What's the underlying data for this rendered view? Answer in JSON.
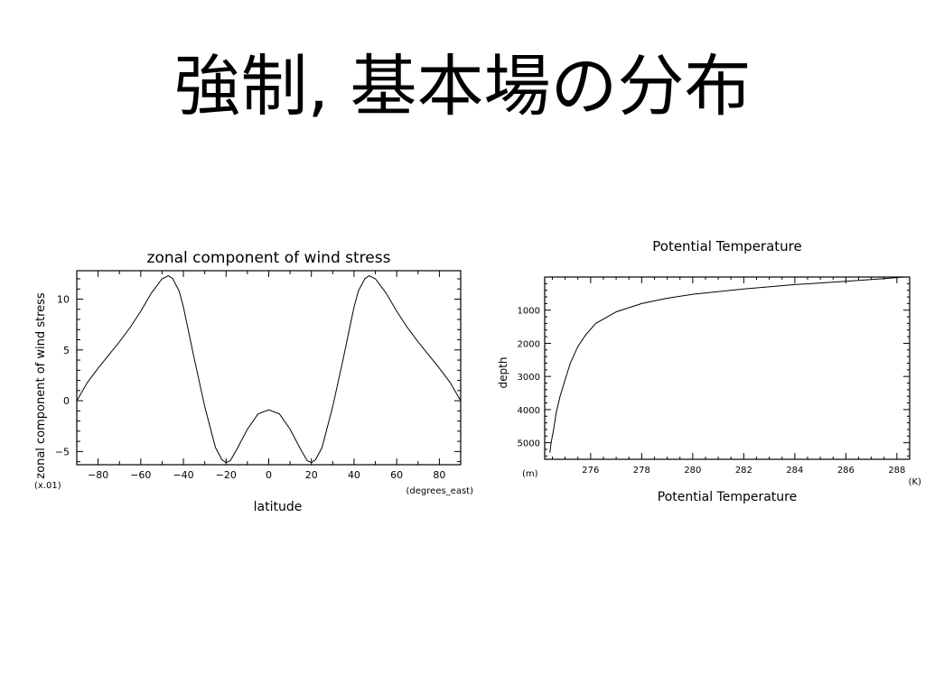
{
  "slide": {
    "title": "強制, 基本場の分布"
  },
  "chart_data": [
    {
      "type": "line",
      "title": "zonal component of wind stress",
      "xlabel": "latitude",
      "ylabel": "zonal component of wind stress",
      "x_unit": "(degrees_east)",
      "y_unit": "(x.01)",
      "xlim": [
        -90,
        90
      ],
      "ylim": [
        -6.3,
        12.8
      ],
      "xticks": [
        -80,
        -60,
        -40,
        -20,
        0,
        20,
        40,
        60,
        80
      ],
      "yticks": [
        -5,
        0,
        5,
        10
      ],
      "grid": false,
      "series": [
        {
          "x": [
            -90,
            -85,
            -80,
            -75,
            -70,
            -65,
            -60,
            -55,
            -50,
            -47,
            -45,
            -42,
            -40,
            -35,
            -30,
            -25,
            -22,
            -20,
            -18,
            -15,
            -10,
            -5,
            0,
            5,
            10,
            15,
            18,
            20,
            22,
            25,
            30,
            35,
            40,
            42,
            45,
            47,
            50,
            55,
            60,
            65,
            70,
            75,
            80,
            85,
            90
          ],
          "y": [
            0.0,
            1.8,
            3.2,
            4.5,
            5.8,
            7.2,
            8.8,
            10.6,
            12.0,
            12.3,
            12.0,
            10.8,
            9.2,
            4.2,
            -0.6,
            -4.6,
            -5.8,
            -6.1,
            -5.9,
            -4.8,
            -2.8,
            -1.3,
            -0.9,
            -1.3,
            -2.8,
            -4.8,
            -5.9,
            -6.1,
            -5.8,
            -4.6,
            -0.6,
            4.2,
            9.2,
            10.8,
            12.0,
            12.3,
            12.0,
            10.6,
            8.8,
            7.2,
            5.8,
            4.5,
            3.2,
            1.8,
            0.0
          ]
        }
      ]
    },
    {
      "type": "line",
      "title": "Potential Temperature",
      "xlabel": "Potential Temperature",
      "ylabel": "depth",
      "x_unit": "(K)",
      "y_unit": "(m)",
      "xlim": [
        274.2,
        288.5
      ],
      "ylim": [
        5500,
        0
      ],
      "xticks": [
        276,
        278,
        280,
        282,
        284,
        286,
        288
      ],
      "yticks": [
        1000,
        2000,
        3000,
        4000,
        5000
      ],
      "grid": false,
      "series": [
        {
          "x": [
            288.3,
            287.5,
            286.0,
            284.0,
            282.0,
            280.0,
            279.0,
            278.0,
            277.0,
            276.2,
            275.8,
            275.5,
            275.2,
            275.0,
            274.8,
            274.65,
            274.55,
            274.45,
            274.4
          ],
          "y": [
            0,
            50,
            130,
            230,
            360,
            520,
            640,
            800,
            1050,
            1400,
            1750,
            2100,
            2600,
            3100,
            3600,
            4100,
            4600,
            5000,
            5300
          ]
        }
      ]
    }
  ]
}
